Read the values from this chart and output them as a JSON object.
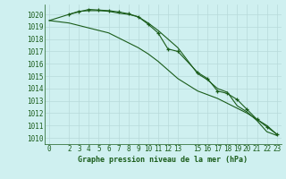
{
  "background_color": "#cff0f0",
  "grid_color": "#b8dada",
  "line_color": "#1a5c1a",
  "marker_color": "#1a5c1a",
  "text_color": "#1a5c1a",
  "xlabel": "Graphe pression niveau de la mer (hPa)",
  "xlim": [
    -0.5,
    23.5
  ],
  "ylim": [
    1009.5,
    1020.8
  ],
  "yticks": [
    1010,
    1011,
    1012,
    1013,
    1014,
    1015,
    1016,
    1017,
    1018,
    1019,
    1020
  ],
  "xticks": [
    0,
    2,
    3,
    4,
    5,
    6,
    7,
    8,
    9,
    10,
    11,
    12,
    13,
    15,
    16,
    17,
    18,
    19,
    20,
    21,
    22,
    23
  ],
  "series": [
    {
      "x": [
        0,
        2,
        3,
        4,
        5,
        6,
        7,
        8,
        9,
        10,
        11,
        12,
        13,
        15,
        16,
        17,
        18,
        19,
        20,
        21,
        22,
        23
      ],
      "y": [
        1019.5,
        1020.0,
        1020.25,
        1020.3,
        1020.3,
        1020.25,
        1020.1,
        1020.0,
        1019.8,
        1019.3,
        1018.7,
        1018.0,
        1017.3,
        1015.2,
        1014.7,
        1014.0,
        1013.7,
        1012.6,
        1012.1,
        1011.4,
        1010.5,
        1010.2
      ],
      "has_markers": false
    },
    {
      "x": [
        2,
        3,
        4,
        5,
        6,
        7,
        8,
        9,
        10,
        11,
        12,
        13,
        15,
        16,
        17,
        18,
        19,
        20,
        21,
        22,
        23
      ],
      "y": [
        1020.0,
        1020.2,
        1020.4,
        1020.35,
        1020.3,
        1020.2,
        1020.05,
        1019.8,
        1019.2,
        1018.5,
        1017.2,
        1017.0,
        1015.3,
        1014.8,
        1013.8,
        1013.6,
        1013.1,
        1012.3,
        1011.5,
        1010.9,
        1010.3
      ],
      "has_markers": true
    },
    {
      "x": [
        0,
        2,
        3,
        4,
        5,
        6,
        7,
        8,
        9,
        10,
        11,
        12,
        13,
        15,
        16,
        17,
        18,
        19,
        20,
        21,
        22,
        23
      ],
      "y": [
        1019.5,
        1019.3,
        1019.1,
        1018.9,
        1018.7,
        1018.5,
        1018.1,
        1017.7,
        1017.3,
        1016.8,
        1016.2,
        1015.5,
        1014.8,
        1013.8,
        1013.5,
        1013.2,
        1012.8,
        1012.4,
        1012.0,
        1011.5,
        1011.0,
        1010.3
      ],
      "has_markers": false
    }
  ]
}
